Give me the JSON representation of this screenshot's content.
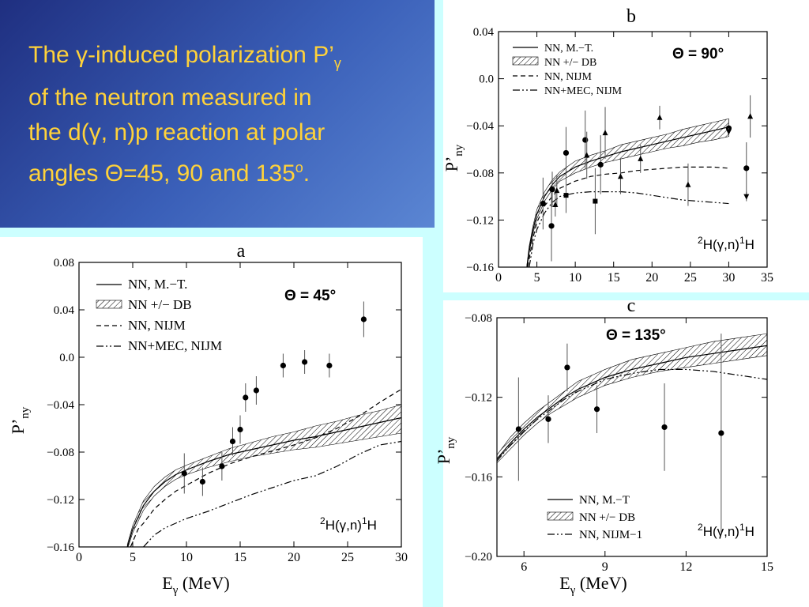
{
  "title": {
    "line1_pre": "The γ-induced polarization P’",
    "line1_sub": "γ",
    "line2": "of  the neutron measured in",
    "line3": "the d(γ, n)p reaction at polar",
    "line4_pre": "angles Θ=45, 90 and 135",
    "line4_sup": "o",
    "line4_post": "."
  },
  "colors": {
    "title_bg": "#2c4aa8",
    "title_text": "#ffd23a",
    "page_bg": "#ccffff",
    "hatch": "#000000"
  },
  "chart_data": [
    {
      "id": "a",
      "type": "line",
      "panel_letter": "a",
      "angle_label": "Θ = 45°",
      "reaction_label": {
        "pre": "2",
        "mid": "H(γ,n)",
        "sup": "1",
        "post": "H"
      },
      "xlabel": "E",
      "xlabel_sub": "γ",
      "xlabel_unit": " (MeV)",
      "ylabel": "P’",
      "ylabel_sub": "ny",
      "xlim": [
        0,
        30
      ],
      "ylim": [
        -0.16,
        0.08
      ],
      "xticks": [
        0,
        5,
        10,
        15,
        20,
        25,
        30
      ],
      "xtick_labels": [
        "0",
        "5",
        "10",
        "15",
        "20",
        "25",
        "30"
      ],
      "yticks": [
        -0.16,
        -0.12,
        -0.08,
        -0.04,
        0.0,
        0.04,
        0.08
      ],
      "ytick_labels": [
        "−0.16",
        "−0.12",
        "−0.08",
        "−0.04",
        "0.0",
        "0.04",
        "0.08"
      ],
      "legend": [
        {
          "label": "NN, M.−T.",
          "style": "solid"
        },
        {
          "label": "NN +/− DB",
          "style": "hatch"
        },
        {
          "label": "NN, NIJM",
          "style": "dashed"
        },
        {
          "label": "NN+MEC, NIJM",
          "style": "dashdot"
        }
      ],
      "series": [
        {
          "style": "solid",
          "x": [
            4.5,
            5,
            6,
            7,
            8,
            9,
            10,
            12,
            14,
            16,
            18,
            20,
            22,
            24,
            26,
            28,
            30
          ],
          "y": [
            -0.16,
            -0.145,
            -0.125,
            -0.113,
            -0.105,
            -0.099,
            -0.095,
            -0.088,
            -0.082,
            -0.078,
            -0.074,
            -0.07,
            -0.067,
            -0.063,
            -0.059,
            -0.055,
            -0.051
          ]
        },
        {
          "style": "band",
          "x": [
            4.5,
            5,
            6,
            7,
            8,
            9,
            10,
            12,
            14,
            16,
            18,
            20,
            22,
            24,
            26,
            28,
            30
          ],
          "y_low": [
            -0.162,
            -0.148,
            -0.129,
            -0.117,
            -0.109,
            -0.103,
            -0.099,
            -0.093,
            -0.088,
            -0.084,
            -0.081,
            -0.078,
            -0.076,
            -0.073,
            -0.07,
            -0.067,
            -0.064
          ],
          "y_high": [
            -0.158,
            -0.142,
            -0.121,
            -0.109,
            -0.101,
            -0.095,
            -0.091,
            -0.084,
            -0.077,
            -0.072,
            -0.067,
            -0.063,
            -0.058,
            -0.054,
            -0.049,
            -0.045,
            -0.04
          ]
        },
        {
          "style": "dashed",
          "x": [
            4.8,
            5.5,
            6,
            7,
            8,
            9,
            10,
            12,
            14,
            16,
            18,
            20,
            22,
            24,
            26,
            28,
            30
          ],
          "y": [
            -0.16,
            -0.145,
            -0.14,
            -0.128,
            -0.12,
            -0.113,
            -0.108,
            -0.098,
            -0.09,
            -0.084,
            -0.079,
            -0.074,
            -0.068,
            -0.06,
            -0.05,
            -0.038,
            -0.027
          ]
        },
        {
          "style": "dashdot",
          "x": [
            6,
            7,
            8,
            10,
            12,
            14,
            16,
            18,
            20,
            22,
            24,
            26,
            28,
            30
          ],
          "y": [
            -0.16,
            -0.15,
            -0.144,
            -0.136,
            -0.13,
            -0.123,
            -0.116,
            -0.11,
            -0.104,
            -0.1,
            -0.092,
            -0.082,
            -0.074,
            -0.071
          ]
        }
      ],
      "points": [
        {
          "x": 9.8,
          "y": -0.098,
          "err": 0.017
        },
        {
          "x": 11.5,
          "y": -0.105,
          "err": 0.012
        },
        {
          "x": 13.3,
          "y": -0.092,
          "err": 0.012
        },
        {
          "x": 14.3,
          "y": -0.071,
          "err": 0.012
        },
        {
          "x": 15.0,
          "y": -0.061,
          "err": 0.012
        },
        {
          "x": 15.5,
          "y": -0.034,
          "err": 0.012
        },
        {
          "x": 16.5,
          "y": -0.028,
          "err": 0.012
        },
        {
          "x": 19.0,
          "y": -0.007,
          "err": 0.01
        },
        {
          "x": 21.0,
          "y": -0.004,
          "err": 0.01
        },
        {
          "x": 23.3,
          "y": -0.007,
          "err": 0.01
        },
        {
          "x": 26.5,
          "y": 0.032,
          "err": 0.015
        }
      ]
    },
    {
      "id": "b",
      "type": "line",
      "panel_letter": "b",
      "angle_label": "Θ = 90°",
      "reaction_label": {
        "pre": "2",
        "mid": "H(γ,n)",
        "sup": "1",
        "post": "H"
      },
      "xlabel": "",
      "xlabel_sub": "",
      "xlabel_unit": "",
      "ylabel": "P’",
      "ylabel_sub": "ny",
      "xlim": [
        0,
        35
      ],
      "ylim": [
        -0.16,
        0.04
      ],
      "xticks": [
        0,
        5,
        10,
        15,
        20,
        25,
        30,
        35
      ],
      "xtick_labels": [
        "0",
        "5",
        "10",
        "15",
        "20",
        "25",
        "30",
        "35"
      ],
      "yticks": [
        -0.16,
        -0.12,
        -0.08,
        -0.04,
        0.0,
        0.04
      ],
      "ytick_labels": [
        "−0.16",
        "−0.12",
        "−0.08",
        "−0.04",
        "0.0",
        "0.04"
      ],
      "legend": [
        {
          "label": "NN, M.−T.",
          "style": "solid"
        },
        {
          "label": "NN +/− DB",
          "style": "hatch"
        },
        {
          "label": "NN, NIJM",
          "style": "dashed"
        },
        {
          "label": "NN+MEC, NIJM",
          "style": "dashdot"
        }
      ],
      "series": [
        {
          "style": "solid",
          "x": [
            3.7,
            4,
            4.5,
            5,
            6,
            7,
            8,
            10,
            12,
            14,
            16,
            18,
            20,
            22,
            24,
            26,
            28,
            30
          ],
          "y": [
            -0.16,
            -0.145,
            -0.128,
            -0.115,
            -0.1,
            -0.09,
            -0.083,
            -0.075,
            -0.07,
            -0.066,
            -0.062,
            -0.059,
            -0.056,
            -0.053,
            -0.05,
            -0.047,
            -0.044,
            -0.041
          ]
        },
        {
          "style": "band",
          "x": [
            3.7,
            4,
            4.5,
            5,
            6,
            7,
            8,
            10,
            12,
            14,
            16,
            18,
            20,
            22,
            24,
            26,
            28,
            30
          ],
          "y_low": [
            -0.162,
            -0.148,
            -0.131,
            -0.119,
            -0.104,
            -0.094,
            -0.087,
            -0.08,
            -0.075,
            -0.071,
            -0.068,
            -0.065,
            -0.062,
            -0.059,
            -0.057,
            -0.054,
            -0.052,
            -0.049
          ],
          "y_high": [
            -0.158,
            -0.142,
            -0.125,
            -0.111,
            -0.096,
            -0.086,
            -0.079,
            -0.07,
            -0.065,
            -0.061,
            -0.056,
            -0.053,
            -0.05,
            -0.047,
            -0.043,
            -0.04,
            -0.037,
            -0.034
          ]
        },
        {
          "style": "dashed",
          "x": [
            3.8,
            4.5,
            5,
            6,
            7,
            8,
            10,
            12,
            14,
            16,
            18,
            20,
            22,
            24,
            26,
            28,
            30
          ],
          "y": [
            -0.16,
            -0.135,
            -0.122,
            -0.108,
            -0.1,
            -0.093,
            -0.087,
            -0.083,
            -0.081,
            -0.08,
            -0.078,
            -0.077,
            -0.076,
            -0.075,
            -0.075,
            -0.075,
            -0.076
          ]
        },
        {
          "style": "dashdot",
          "x": [
            4,
            4.5,
            5,
            6,
            7,
            8,
            10,
            12,
            14,
            16,
            18,
            20,
            22,
            24,
            26,
            28,
            30
          ],
          "y": [
            -0.16,
            -0.14,
            -0.128,
            -0.114,
            -0.105,
            -0.1,
            -0.097,
            -0.096,
            -0.096,
            -0.096,
            -0.097,
            -0.099,
            -0.101,
            -0.103,
            -0.104,
            -0.105,
            -0.106
          ]
        }
      ],
      "points": [
        {
          "x": 5.8,
          "y": -0.106,
          "err": 0.022,
          "marker": "circle"
        },
        {
          "x": 6.9,
          "y": -0.125,
          "err": 0.03,
          "marker": "circle"
        },
        {
          "x": 7.0,
          "y": -0.094,
          "err": 0.015,
          "marker": "circle"
        },
        {
          "x": 7.6,
          "y": -0.095,
          "err": 0.013,
          "marker": "triangle"
        },
        {
          "x": 7.4,
          "y": -0.107,
          "err": 0.01,
          "marker": "triangle"
        },
        {
          "x": 8.8,
          "y": -0.063,
          "err": 0.022,
          "marker": "circle"
        },
        {
          "x": 8.8,
          "y": -0.099,
          "err": 0.015,
          "marker": "square"
        },
        {
          "x": 11.3,
          "y": -0.052,
          "err": 0.025,
          "marker": "circle"
        },
        {
          "x": 11.5,
          "y": -0.065,
          "err": 0.02,
          "marker": "triangle"
        },
        {
          "x": 12.6,
          "y": -0.104,
          "err": 0.028,
          "marker": "square"
        },
        {
          "x": 13.3,
          "y": -0.073,
          "err": 0.025,
          "marker": "circle"
        },
        {
          "x": 13.9,
          "y": -0.046,
          "err": 0.022,
          "marker": "triangle"
        },
        {
          "x": 15.9,
          "y": -0.083,
          "err": 0.015,
          "marker": "triangle"
        },
        {
          "x": 18.5,
          "y": -0.068,
          "err": 0.012,
          "marker": "triangle"
        },
        {
          "x": 21.0,
          "y": -0.033,
          "err": 0.01,
          "marker": "triangle"
        },
        {
          "x": 24.7,
          "y": -0.09,
          "err": 0.018,
          "marker": "triangle"
        },
        {
          "x": 30.0,
          "y": -0.042,
          "err": 0.007,
          "marker": "circle"
        },
        {
          "x": 30.0,
          "y": -0.045,
          "err": 0.003,
          "marker": "triangle-down"
        },
        {
          "x": 32.8,
          "y": -0.032,
          "err": 0.018,
          "marker": "triangle"
        },
        {
          "x": 32.3,
          "y": -0.076,
          "err": 0.022,
          "marker": "circle"
        },
        {
          "x": 32.3,
          "y": -0.1,
          "err": 0.004,
          "marker": "triangle-down"
        }
      ]
    },
    {
      "id": "c",
      "type": "line",
      "panel_letter": "c",
      "angle_label": "Θ = 135°",
      "reaction_label": {
        "pre": "2",
        "mid": "H(γ,n)",
        "sup": "1",
        "post": "H"
      },
      "xlabel": "E",
      "xlabel_sub": "γ",
      "xlabel_unit": " (MeV)",
      "ylabel": "P’",
      "ylabel_sub": "ny",
      "xlim": [
        5,
        15
      ],
      "ylim": [
        -0.2,
        -0.08
      ],
      "xticks": [
        6,
        9,
        12,
        15
      ],
      "xtick_labels": [
        "6",
        "9",
        "12",
        "15"
      ],
      "yticks": [
        -0.2,
        -0.16,
        -0.12,
        -0.08
      ],
      "ytick_labels": [
        "−0.20",
        "−0.16",
        "−0.12",
        "−0.08"
      ],
      "legend": [
        {
          "label": "NN, M.−T",
          "style": "solid"
        },
        {
          "label": "NN +/− DB",
          "style": "hatch"
        },
        {
          "label": "NN, NIJM−1",
          "style": "dashdot"
        }
      ],
      "series": [
        {
          "style": "solid",
          "x": [
            5,
            5.5,
            6,
            6.5,
            7,
            7.5,
            8,
            8.5,
            9,
            10,
            11,
            12,
            13,
            14,
            15
          ],
          "y": [
            -0.151,
            -0.143,
            -0.136,
            -0.13,
            -0.125,
            -0.12,
            -0.116,
            -0.113,
            -0.11,
            -0.106,
            -0.103,
            -0.1,
            -0.098,
            -0.096,
            -0.094
          ]
        },
        {
          "style": "band",
          "x": [
            5,
            5.5,
            6,
            6.5,
            7,
            7.5,
            8,
            8.5,
            9,
            10,
            11,
            12,
            13,
            14,
            15
          ],
          "y_low": [
            -0.153,
            -0.146,
            -0.139,
            -0.133,
            -0.128,
            -0.124,
            -0.12,
            -0.117,
            -0.114,
            -0.11,
            -0.107,
            -0.105,
            -0.103,
            -0.101,
            -0.099
          ],
          "y_high": [
            -0.149,
            -0.14,
            -0.133,
            -0.127,
            -0.122,
            -0.117,
            -0.112,
            -0.109,
            -0.106,
            -0.101,
            -0.098,
            -0.095,
            -0.092,
            -0.09,
            -0.088
          ]
        },
        {
          "style": "dashdot",
          "x": [
            5,
            5.5,
            6,
            6.5,
            7,
            7.5,
            8,
            8.5,
            9,
            10,
            11,
            12,
            13,
            14,
            15
          ],
          "y": [
            -0.152,
            -0.144,
            -0.137,
            -0.131,
            -0.126,
            -0.121,
            -0.117,
            -0.114,
            -0.111,
            -0.108,
            -0.106,
            -0.106,
            -0.107,
            -0.109,
            -0.111
          ]
        }
      ],
      "points": [
        {
          "x": 5.8,
          "y": -0.136,
          "err": 0.026
        },
        {
          "x": 6.9,
          "y": -0.131,
          "err": 0.012
        },
        {
          "x": 7.6,
          "y": -0.105,
          "err": 0.012
        },
        {
          "x": 8.7,
          "y": -0.126,
          "err": 0.012
        },
        {
          "x": 11.2,
          "y": -0.135,
          "err": 0.022
        },
        {
          "x": 13.3,
          "y": -0.138,
          "err": 0.05
        }
      ]
    }
  ]
}
